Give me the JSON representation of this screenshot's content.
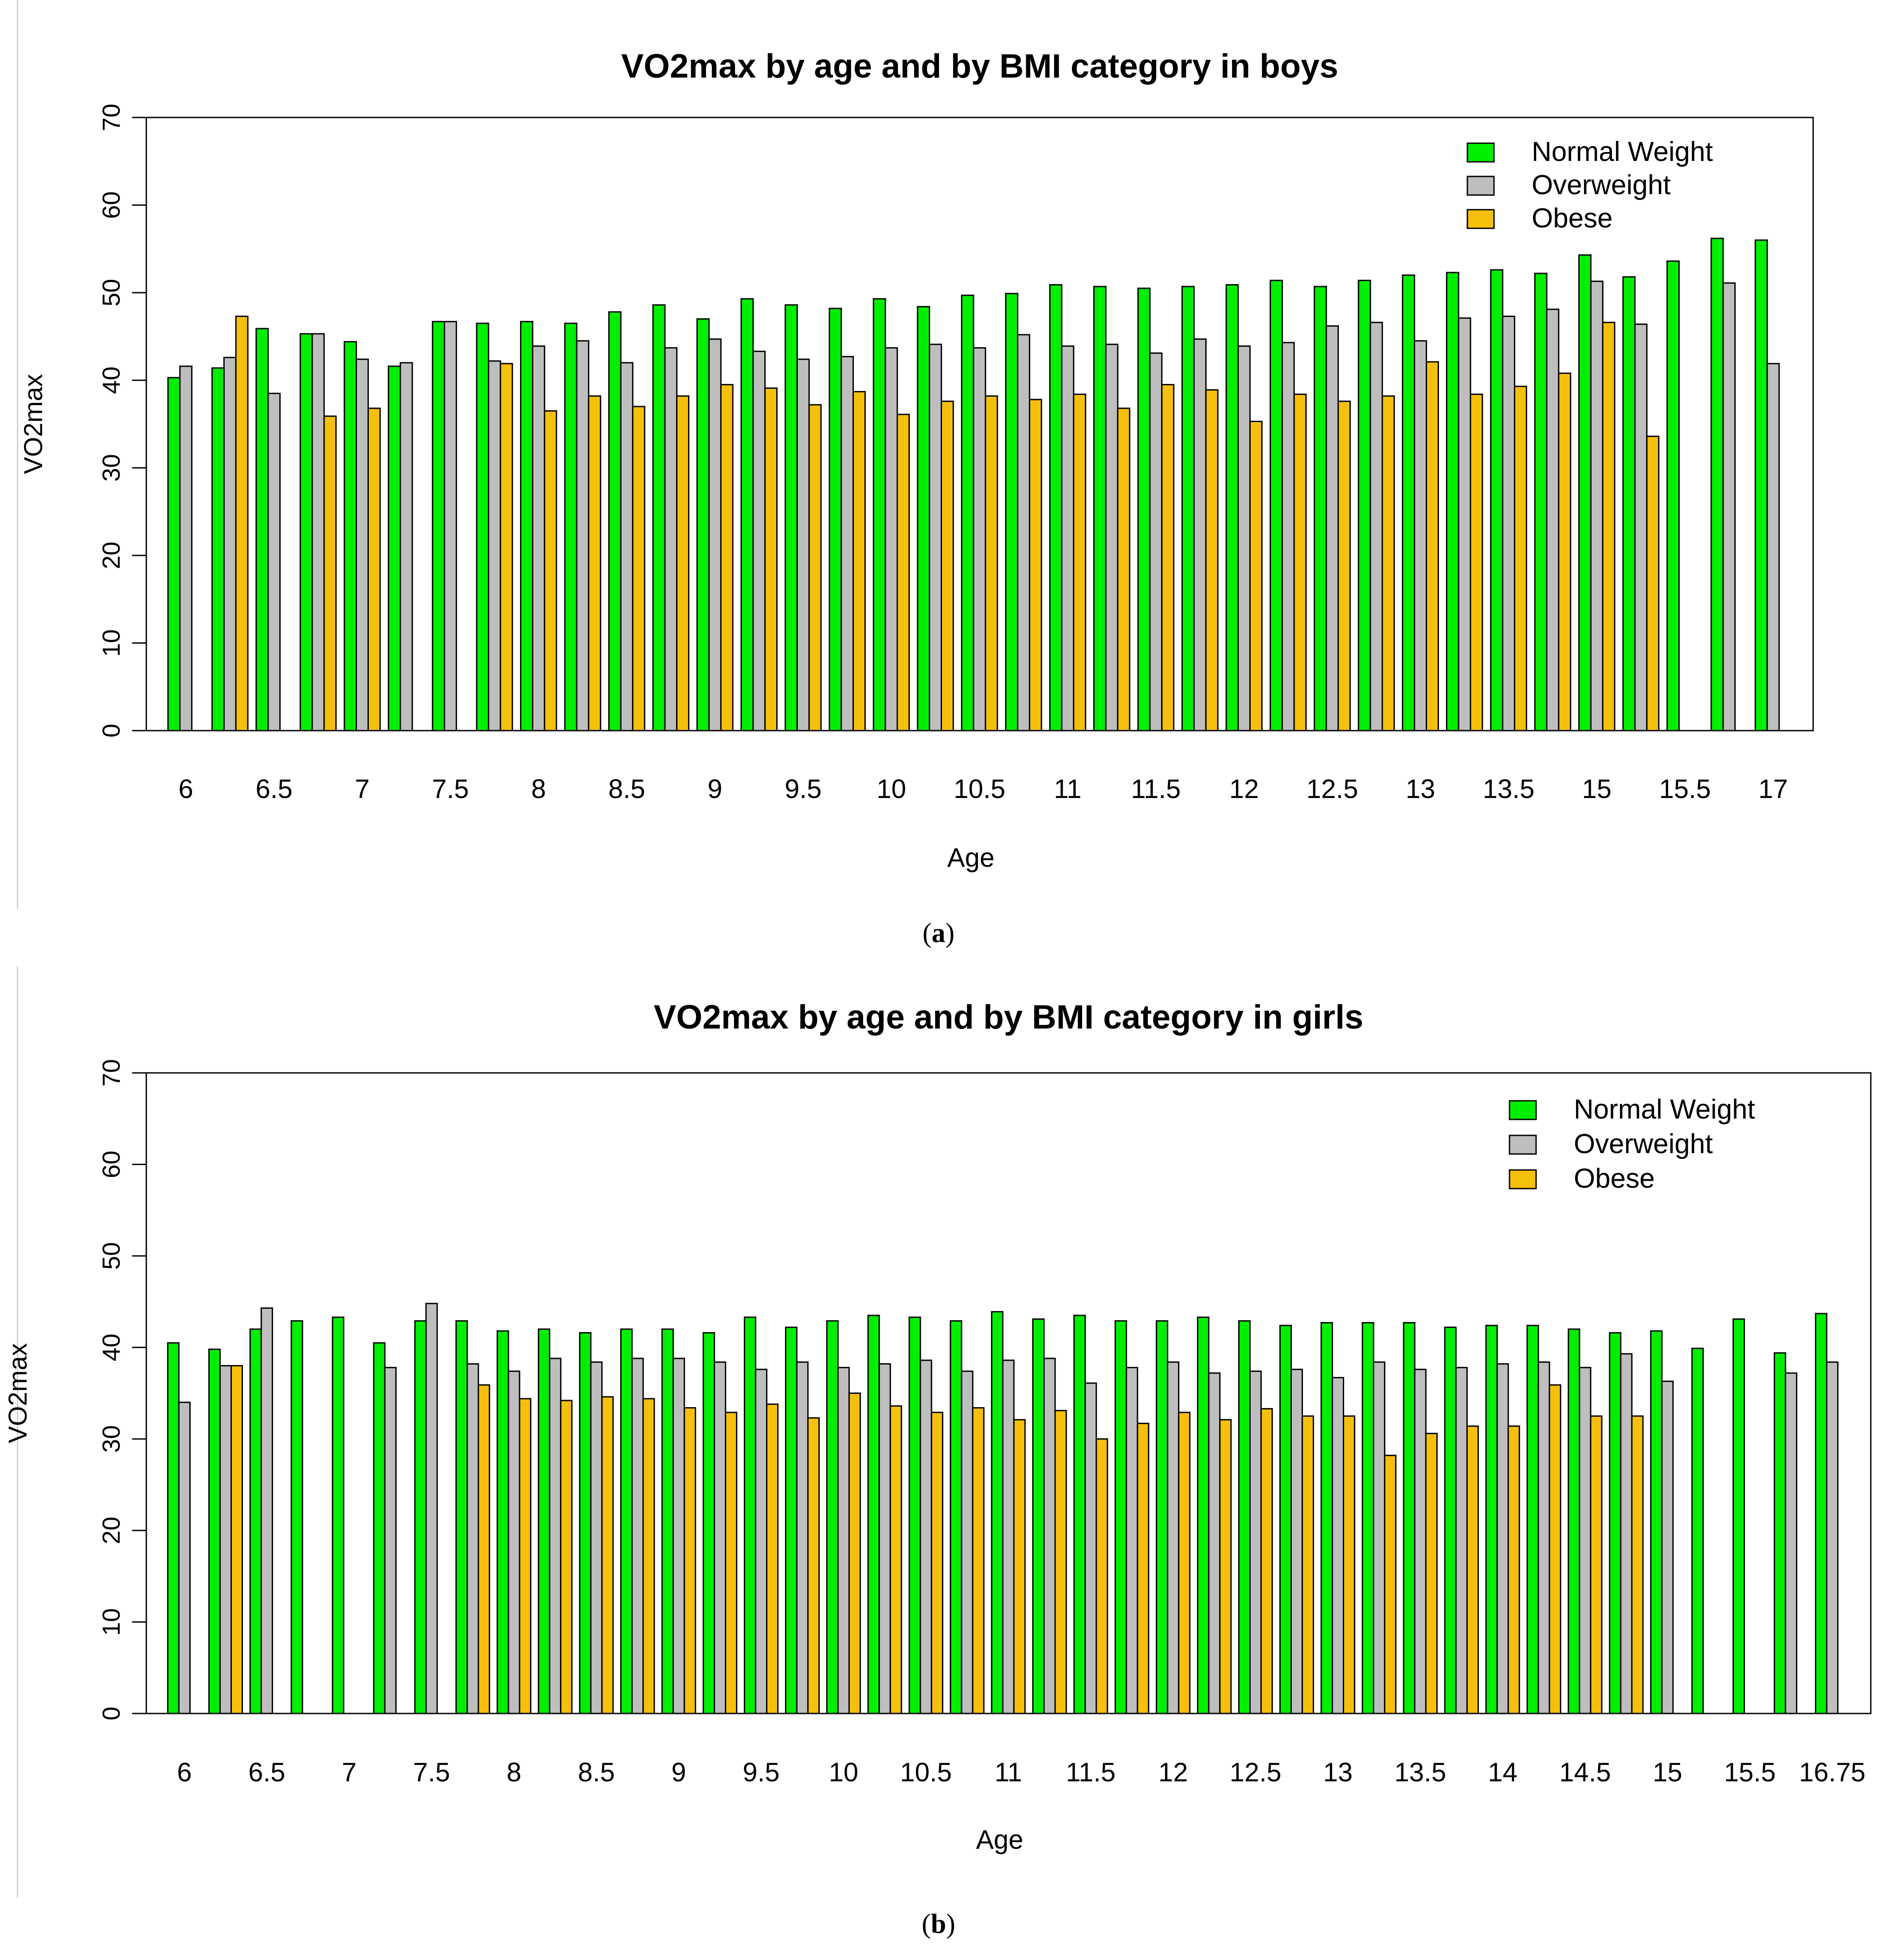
{
  "chart_data": [
    {
      "type": "bar",
      "title": "VO2max by age and by BMI category in boys",
      "xlabel": "Age",
      "ylabel": "VO2max",
      "ylim": [
        0,
        70
      ],
      "yticks": [
        0,
        10,
        20,
        30,
        40,
        50,
        60,
        70
      ],
      "legend_position": "top-right",
      "colors": {
        "Normal Weight": "#00ee00",
        "Overweight": "#bebebe",
        "Obese": "#f5c00b"
      },
      "categories": [
        "6",
        "6.25",
        "6.5",
        "6.75",
        "7",
        "7.25",
        "7.5",
        "7.75",
        "8",
        "8.25",
        "8.5",
        "8.75",
        "9",
        "9.25",
        "9.5",
        "9.75",
        "10",
        "10.25",
        "10.5",
        "10.75",
        "11",
        "11.25",
        "11.5",
        "11.75",
        "12",
        "12.25",
        "12.5",
        "12.75",
        "13",
        "13.25",
        "13.5",
        "13.75",
        "15",
        "15.25",
        "15.5",
        "16",
        "17"
      ],
      "tick_labels": [
        "6",
        "",
        "6.5",
        "",
        "7",
        "",
        "7.5",
        "",
        "8",
        "",
        "8.5",
        "",
        "9",
        "",
        "9.5",
        "",
        "10",
        "",
        "10.5",
        "",
        "11",
        "",
        "11.5",
        "",
        "12",
        "",
        "12.5",
        "",
        "13",
        "",
        "13.5",
        "",
        "15",
        "",
        "15.5",
        "",
        "17"
      ],
      "series": [
        {
          "name": "Normal Weight",
          "values": [
            40.3,
            41.4,
            45.9,
            45.3,
            44.4,
            41.6,
            46.7,
            46.5,
            46.7,
            46.5,
            47.8,
            48.6,
            47.0,
            49.3,
            48.6,
            48.2,
            49.3,
            48.4,
            49.7,
            49.9,
            50.9,
            50.7,
            50.5,
            50.7,
            50.9,
            51.4,
            50.7,
            51.4,
            52.0,
            52.3,
            52.6,
            52.2,
            54.3,
            51.8,
            53.6,
            56.2,
            56.0
          ]
        },
        {
          "name": "Overweight",
          "values": [
            41.6,
            42.6,
            38.5,
            45.3,
            42.4,
            42.0,
            46.7,
            42.2,
            43.9,
            44.5,
            42.0,
            43.7,
            44.7,
            43.3,
            42.4,
            42.7,
            43.7,
            44.1,
            43.7,
            45.2,
            43.9,
            44.1,
            43.1,
            44.7,
            43.9,
            44.3,
            46.2,
            46.6,
            44.5,
            47.1,
            47.3,
            48.1,
            51.3,
            46.4,
            null,
            51.1,
            41.9
          ]
        },
        {
          "name": "Obese",
          "values": [
            null,
            47.3,
            null,
            35.9,
            36.8,
            null,
            null,
            41.9,
            36.5,
            38.2,
            37.0,
            38.2,
            39.5,
            39.1,
            37.2,
            38.7,
            36.1,
            37.6,
            38.2,
            37.8,
            38.4,
            36.8,
            39.5,
            38.9,
            35.3,
            38.4,
            37.6,
            38.2,
            42.1,
            38.4,
            39.3,
            40.8,
            46.6,
            33.6,
            null,
            null,
            null
          ]
        }
      ]
    },
    {
      "type": "bar",
      "title": "VO2max by age and by BMI category in girls",
      "xlabel": "Age",
      "ylabel": "VO2max",
      "ylim": [
        0,
        70
      ],
      "yticks": [
        0,
        10,
        20,
        30,
        40,
        50,
        60,
        70
      ],
      "legend_position": "top-right",
      "colors": {
        "Normal Weight": "#00ee00",
        "Overweight": "#bebebe",
        "Obese": "#f5c00b"
      },
      "categories": [
        "6",
        "6.25",
        "6.5",
        "6.75",
        "7",
        "7.25",
        "7.5",
        "7.75",
        "8",
        "8.25",
        "8.5",
        "8.75",
        "9",
        "9.25",
        "9.5",
        "9.75",
        "10",
        "10.25",
        "10.5",
        "10.75",
        "11",
        "11.25",
        "11.5",
        "11.75",
        "12",
        "12.25",
        "12.5",
        "12.75",
        "13",
        "13.25",
        "13.5",
        "13.75",
        "14",
        "14.25",
        "14.5",
        "14.75",
        "15",
        "15.25",
        "15.5",
        "16",
        "16.75"
      ],
      "tick_labels": [
        "6",
        "",
        "6.5",
        "",
        "7",
        "",
        "7.5",
        "",
        "8",
        "",
        "8.5",
        "",
        "9",
        "",
        "9.5",
        "",
        "10",
        "",
        "10.5",
        "",
        "11",
        "",
        "11.5",
        "",
        "12",
        "",
        "12.5",
        "",
        "13",
        "",
        "13.5",
        "",
        "14",
        "",
        "14.5",
        "",
        "15",
        "",
        "15.5",
        "",
        "16.75"
      ],
      "series": [
        {
          "name": "Normal Weight",
          "values": [
            40.5,
            39.8,
            42.0,
            42.9,
            43.3,
            40.5,
            42.9,
            42.9,
            41.8,
            42.0,
            41.6,
            42.0,
            42.0,
            41.6,
            43.3,
            42.2,
            42.9,
            43.5,
            43.3,
            42.9,
            43.9,
            43.1,
            43.5,
            42.9,
            42.9,
            43.3,
            42.9,
            42.4,
            42.7,
            42.7,
            42.7,
            42.2,
            42.4,
            42.4,
            42.0,
            41.6,
            41.8,
            39.9,
            43.1,
            39.4,
            43.7
          ]
        },
        {
          "name": "Overweight",
          "values": [
            34.0,
            38.0,
            44.3,
            null,
            null,
            37.8,
            44.8,
            38.2,
            37.4,
            38.8,
            38.4,
            38.8,
            38.8,
            38.4,
            37.6,
            38.4,
            37.8,
            38.2,
            38.6,
            37.4,
            38.6,
            38.8,
            36.1,
            37.8,
            38.4,
            37.2,
            37.4,
            37.6,
            36.7,
            38.4,
            37.6,
            37.8,
            38.2,
            38.4,
            37.8,
            39.3,
            36.3,
            null,
            null,
            37.2,
            38.4
          ]
        },
        {
          "name": "Obese",
          "values": [
            null,
            38.0,
            null,
            null,
            null,
            null,
            null,
            35.9,
            34.4,
            34.2,
            34.6,
            34.4,
            33.4,
            32.9,
            33.8,
            32.3,
            35.0,
            33.6,
            32.9,
            33.4,
            32.1,
            33.1,
            30.0,
            31.7,
            32.9,
            32.1,
            33.3,
            32.5,
            32.5,
            28.2,
            30.6,
            31.4,
            31.4,
            35.9,
            32.5,
            32.5,
            null,
            null,
            null,
            null,
            null
          ]
        }
      ]
    }
  ],
  "captions": [
    "(a)",
    "(b)"
  ]
}
